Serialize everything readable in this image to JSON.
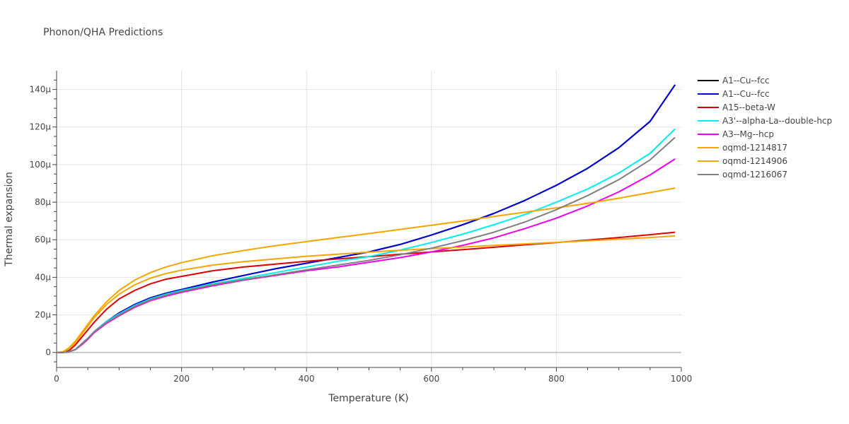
{
  "chart_data": {
    "type": "line",
    "title": "Phonon/QHA Predictions",
    "xlabel": "Temperature (K)",
    "ylabel": "Thermal expansion",
    "xlim": [
      0,
      1000
    ],
    "ylim": [
      -8e-06,
      0.00015
    ],
    "x_ticks": [
      0,
      200,
      400,
      600,
      800,
      1000
    ],
    "x_tick_labels": [
      "0",
      "200",
      "400",
      "600",
      "800",
      "1000"
    ],
    "y_ticks": [
      0,
      2e-05,
      4e-05,
      6e-05,
      8e-05,
      0.0001,
      0.00012,
      0.00014
    ],
    "y_tick_labels": [
      "0",
      "20μ",
      "40μ",
      "60μ",
      "80μ",
      "100μ",
      "120μ",
      "140μ"
    ],
    "grid": true,
    "legend_position": "right",
    "x": [
      0,
      10,
      20,
      30,
      40,
      50,
      60,
      80,
      100,
      125,
      150,
      175,
      200,
      250,
      300,
      350,
      400,
      450,
      500,
      550,
      600,
      650,
      700,
      750,
      800,
      850,
      900,
      950,
      990
    ],
    "series": [
      {
        "name": "A1--Cu--fcc",
        "color": "#000000",
        "values": [
          0,
          0,
          4e-07,
          1.5e-06,
          4.5e-06,
          7.5e-06,
          1.1e-05,
          1.65e-05,
          2.1e-05,
          2.55e-05,
          2.9e-05,
          3.15e-05,
          3.35e-05,
          3.75e-05,
          4.1e-05,
          4.45e-05,
          4.75e-05,
          5.05e-05,
          5.35e-05,
          5.75e-05,
          6.25e-05,
          6.8e-05,
          7.4e-05,
          8.1e-05,
          8.9e-05,
          9.8e-05,
          0.000109,
          0.000123,
          0.0001425
        ]
      },
      {
        "name": "A1--Cu--fcc",
        "color": "#0000dd",
        "values": [
          0,
          0,
          4e-07,
          1.5e-06,
          4.5e-06,
          7.5e-06,
          1.1e-05,
          1.65e-05,
          2.1e-05,
          2.55e-05,
          2.9e-05,
          3.15e-05,
          3.35e-05,
          3.75e-05,
          4.1e-05,
          4.45e-05,
          4.75e-05,
          5.05e-05,
          5.35e-05,
          5.75e-05,
          6.25e-05,
          6.8e-05,
          7.4e-05,
          8.1e-05,
          8.9e-05,
          9.8e-05,
          0.000109,
          0.000123,
          0.0001425
        ]
      },
      {
        "name": "A15--beta-W",
        "color": "#dd0000",
        "values": [
          0,
          0,
          1e-06,
          4e-06,
          8e-06,
          1.2e-05,
          1.6e-05,
          2.3e-05,
          2.85e-05,
          3.3e-05,
          3.65e-05,
          3.9e-05,
          4.05e-05,
          4.35e-05,
          4.55e-05,
          4.7e-05,
          4.85e-05,
          4.98e-05,
          5.1e-05,
          5.23e-05,
          5.35e-05,
          5.47e-05,
          5.6e-05,
          5.73e-05,
          5.85e-05,
          5.98e-05,
          6.12e-05,
          6.27e-05,
          6.4e-05
        ]
      },
      {
        "name": "A3'--alpha-La--double-hcp",
        "color": "#00eeee",
        "values": [
          0,
          0,
          4e-07,
          1.5e-06,
          4.5e-06,
          7.5e-06,
          1.1e-05,
          1.65e-05,
          2.05e-05,
          2.5e-05,
          2.85e-05,
          3.1e-05,
          3.3e-05,
          3.65e-05,
          3.95e-05,
          4.25e-05,
          4.55e-05,
          4.85e-05,
          5.1e-05,
          5.45e-05,
          5.85e-05,
          6.3e-05,
          6.8e-05,
          7.35e-05,
          8e-05,
          8.7e-05,
          9.55e-05,
          0.000106,
          0.000119
        ]
      },
      {
        "name": "A3--Mg--hcp",
        "color": "#ee00ee",
        "values": [
          0,
          0,
          4e-07,
          1.5e-06,
          4e-06,
          7e-06,
          1.05e-05,
          1.55e-05,
          1.95e-05,
          2.4e-05,
          2.75e-05,
          3e-05,
          3.2e-05,
          3.55e-05,
          3.85e-05,
          4.1e-05,
          4.35e-05,
          4.55e-05,
          4.8e-05,
          5.05e-05,
          5.35e-05,
          5.7e-05,
          6.1e-05,
          6.6e-05,
          7.15e-05,
          7.8e-05,
          8.55e-05,
          9.45e-05,
          0.000103
        ]
      },
      {
        "name": "oqmd-1214817",
        "color": "#f5a500",
        "values": [
          0,
          2e-07,
          2e-06,
          5e-06,
          9.5e-06,
          1.4e-05,
          1.85e-05,
          2.55e-05,
          3.1e-05,
          3.6e-05,
          3.95e-05,
          4.2e-05,
          4.38e-05,
          4.65e-05,
          4.83e-05,
          4.98e-05,
          5.12e-05,
          5.23e-05,
          5.34e-05,
          5.44e-05,
          5.53e-05,
          5.61e-05,
          5.7e-05,
          5.78e-05,
          5.86e-05,
          5.94e-05,
          6.03e-05,
          6.12e-05,
          6.2e-05
        ]
      },
      {
        "name": "oqmd-1214906",
        "color": "#f5a500",
        "values": [
          0,
          3e-07,
          2.5e-06,
          6e-06,
          1.05e-05,
          1.5e-05,
          1.95e-05,
          2.7e-05,
          3.3e-05,
          3.85e-05,
          4.25e-05,
          4.55e-05,
          4.78e-05,
          5.15e-05,
          5.43e-05,
          5.68e-05,
          5.9e-05,
          6.12e-05,
          6.33e-05,
          6.55e-05,
          6.77e-05,
          7e-05,
          7.24e-05,
          7.47e-05,
          7.7e-05,
          7.94e-05,
          8.21e-05,
          8.51e-05,
          8.75e-05
        ]
      },
      {
        "name": "oqmd-1216067",
        "color": "#808080",
        "values": [
          0,
          0,
          4e-07,
          1.5e-06,
          4.5e-06,
          7.5e-06,
          1.1e-05,
          1.6e-05,
          2e-05,
          2.45e-05,
          2.8e-05,
          3.05e-05,
          3.25e-05,
          3.6e-05,
          3.88e-05,
          4.13e-05,
          4.4e-05,
          4.65e-05,
          4.9e-05,
          5.2e-05,
          5.55e-05,
          5.95e-05,
          6.4e-05,
          6.95e-05,
          7.6e-05,
          8.35e-05,
          9.2e-05,
          0.0001025,
          0.0001145
        ]
      }
    ]
  }
}
